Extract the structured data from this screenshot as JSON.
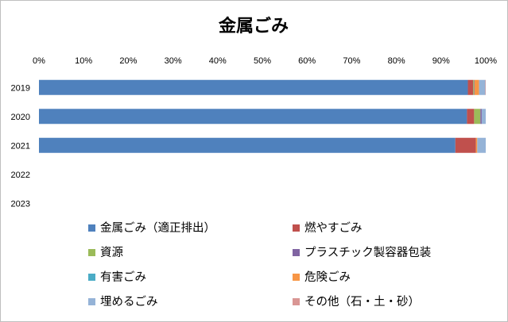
{
  "chart_data": {
    "type": "bar",
    "orientation": "horizontal",
    "stacked": "percent",
    "title": "金属ごみ",
    "categories": [
      "2019",
      "2020",
      "2021",
      "2022",
      "2023"
    ],
    "x_ticks": [
      "0%",
      "10%",
      "20%",
      "30%",
      "40%",
      "50%",
      "60%",
      "70%",
      "80%",
      "90%",
      "100%"
    ],
    "xlim": [
      0,
      100
    ],
    "x_axis_position": "top",
    "grid": false,
    "legend_position": "bottom",
    "series": [
      {
        "name": "金属ごみ（適正排出）",
        "color": "#4f81bd",
        "values": [
          96.0,
          95.8,
          93.2,
          null,
          null
        ]
      },
      {
        "name": "燃やすごみ",
        "color": "#c0504d",
        "values": [
          1.2,
          1.6,
          4.6,
          null,
          null
        ]
      },
      {
        "name": "資源",
        "color": "#9bbb59",
        "values": [
          0.2,
          1.4,
          0.0,
          null,
          null
        ]
      },
      {
        "name": "プラスチック製容器包装",
        "color": "#8064a2",
        "values": [
          0.1,
          0.3,
          0.0,
          null,
          null
        ]
      },
      {
        "name": "有害ごみ",
        "color": "#4bacc6",
        "values": [
          0.0,
          0.0,
          0.0,
          null,
          null
        ]
      },
      {
        "name": "危険ごみ",
        "color": "#f79646",
        "values": [
          1.0,
          0.0,
          0.3,
          null,
          null
        ]
      },
      {
        "name": "埋めるごみ",
        "color": "#95b3d7",
        "values": [
          1.4,
          0.9,
          1.9,
          null,
          null
        ]
      },
      {
        "name": "その他（石・土・砂）",
        "color": "#d99694",
        "values": [
          0.1,
          0.0,
          0.0,
          null,
          null
        ]
      }
    ]
  }
}
